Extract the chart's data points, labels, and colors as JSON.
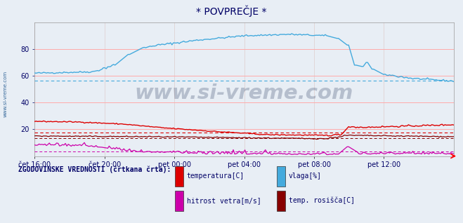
{
  "title": "* POVPREČJE *",
  "bg_color": "#e8eef5",
  "plot_bg_color": "#e8eef5",
  "ylim": [
    0,
    100
  ],
  "yticks": [
    20,
    40,
    60,
    80
  ],
  "xlabel_ticks": [
    "čet 16:00",
    "čet 20:00",
    "pet 00:00",
    "pet 04:00",
    "pet 08:00",
    "pet 12:00"
  ],
  "n_points": 288,
  "watermark": "www.si-vreme.com",
  "legend_title": "ZGODOVINSKE VREDNOSTI (črtkana črta):",
  "legend_items": [
    {
      "label": "temperatura[C]",
      "color": "#dd0000"
    },
    {
      "label": "vlaga[%]",
      "color": "#44aadd"
    },
    {
      "label": "hitrost vetra[m/s]",
      "color": "#cc00aa"
    },
    {
      "label": "temp. rosišča[C]",
      "color": "#880000"
    }
  ],
  "grid_color_h": "#ffaaaa",
  "grid_color_v": "#ddcccc",
  "axis_label_color": "#000066",
  "title_color": "#000066",
  "watermark_color": "#334466",
  "side_label": "www.si-vreme.com",
  "side_label_color": "#336699",
  "hum_color": "#44aadd",
  "temp_color": "#dd0000",
  "wind_color": "#cc00aa",
  "dew_color": "#880000"
}
